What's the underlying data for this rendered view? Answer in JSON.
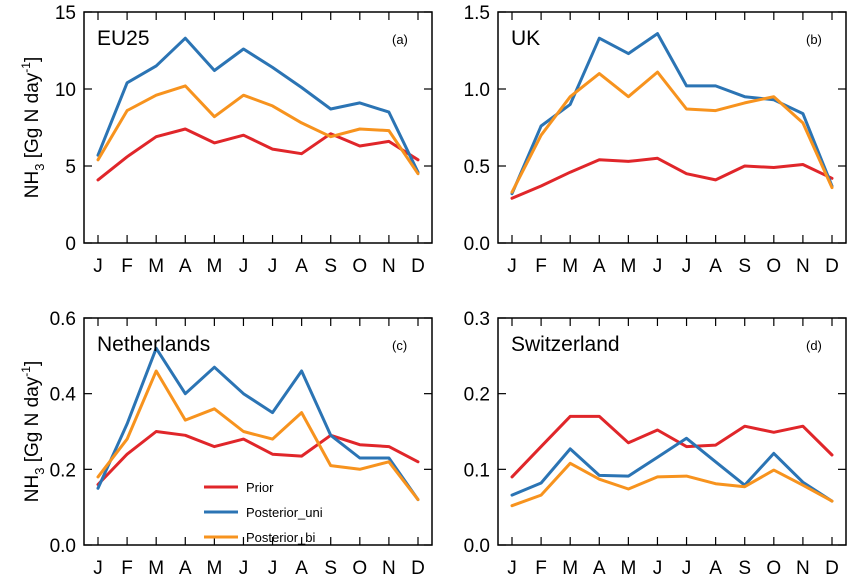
{
  "chart_data": [
    {
      "type": "line",
      "title": "EU25",
      "panel_tag": "(a)",
      "ylabel": "NH3 [Gg N day-1]",
      "categories": [
        "J",
        "F",
        "M",
        "A",
        "M",
        "J",
        "J",
        "A",
        "S",
        "O",
        "N",
        "D"
      ],
      "ylim": [
        0,
        15
      ],
      "yticks": [
        0,
        5,
        10,
        15
      ],
      "ytick_labels": [
        "0",
        "5",
        "10",
        "15"
      ],
      "series": [
        {
          "name": "Prior",
          "color": "#e0262a",
          "values": [
            4.1,
            5.6,
            6.9,
            7.4,
            6.5,
            7.0,
            6.1,
            5.8,
            7.1,
            6.3,
            6.6,
            5.4
          ]
        },
        {
          "name": "Posterior_uni",
          "color": "#2b74b4",
          "values": [
            5.7,
            10.4,
            11.5,
            13.3,
            11.2,
            12.6,
            11.4,
            10.1,
            8.7,
            9.1,
            8.5,
            4.6
          ]
        },
        {
          "name": "Posterior_bi",
          "color": "#f7931e",
          "values": [
            5.4,
            8.6,
            9.6,
            10.2,
            8.2,
            9.6,
            8.9,
            7.8,
            6.9,
            7.4,
            7.3,
            4.5
          ]
        }
      ]
    },
    {
      "type": "line",
      "title": "UK",
      "panel_tag": "(b)",
      "ylabel": "",
      "categories": [
        "J",
        "F",
        "M",
        "A",
        "M",
        "J",
        "J",
        "A",
        "S",
        "O",
        "N",
        "D"
      ],
      "ylim": [
        0,
        1.5
      ],
      "yticks": [
        0,
        0.5,
        1.0,
        1.5
      ],
      "ytick_labels": [
        "0.0",
        "0.5",
        "1.0",
        "1.5"
      ],
      "series": [
        {
          "name": "Prior",
          "color": "#e0262a",
          "values": [
            0.29,
            0.37,
            0.46,
            0.54,
            0.53,
            0.55,
            0.45,
            0.41,
            0.5,
            0.49,
            0.51,
            0.42
          ]
        },
        {
          "name": "Posterior_uni",
          "color": "#2b74b4",
          "values": [
            0.32,
            0.76,
            0.9,
            1.33,
            1.23,
            1.36,
            1.02,
            1.02,
            0.95,
            0.93,
            0.84,
            0.37
          ]
        },
        {
          "name": "Posterior_bi",
          "color": "#f7931e",
          "values": [
            0.33,
            0.7,
            0.95,
            1.1,
            0.95,
            1.11,
            0.87,
            0.86,
            0.91,
            0.95,
            0.78,
            0.36
          ]
        }
      ]
    },
    {
      "type": "line",
      "title": "Netherlands",
      "panel_tag": "(c)",
      "ylabel": "NH3 [Gg N day-1]",
      "categories": [
        "J",
        "F",
        "M",
        "A",
        "M",
        "J",
        "J",
        "A",
        "S",
        "O",
        "N",
        "D"
      ],
      "ylim": [
        0,
        0.6
      ],
      "yticks": [
        0,
        0.2,
        0.4,
        0.6
      ],
      "ytick_labels": [
        "0.0",
        "0.2",
        "0.4",
        "0.6"
      ],
      "series": [
        {
          "name": "Prior",
          "color": "#e0262a",
          "values": [
            0.16,
            0.24,
            0.3,
            0.29,
            0.26,
            0.28,
            0.24,
            0.235,
            0.29,
            0.265,
            0.26,
            0.22
          ]
        },
        {
          "name": "Posterior_uni",
          "color": "#2b74b4",
          "values": [
            0.15,
            0.32,
            0.52,
            0.4,
            0.47,
            0.4,
            0.35,
            0.46,
            0.29,
            0.23,
            0.23,
            0.12
          ]
        },
        {
          "name": "Posterior_bi",
          "color": "#f7931e",
          "values": [
            0.18,
            0.28,
            0.46,
            0.33,
            0.36,
            0.3,
            0.28,
            0.35,
            0.21,
            0.2,
            0.22,
            0.12
          ]
        }
      ]
    },
    {
      "type": "line",
      "title": "Switzerland",
      "panel_tag": "(d)",
      "ylabel": "",
      "categories": [
        "J",
        "F",
        "M",
        "A",
        "M",
        "J",
        "J",
        "A",
        "S",
        "O",
        "N",
        "D"
      ],
      "ylim": [
        0,
        0.3
      ],
      "yticks": [
        0,
        0.1,
        0.2,
        0.3
      ],
      "ytick_labels": [
        "0.0",
        "0.1",
        "0.2",
        "0.3"
      ],
      "series": [
        {
          "name": "Prior",
          "color": "#e0262a",
          "values": [
            0.09,
            0.13,
            0.17,
            0.17,
            0.135,
            0.152,
            0.13,
            0.132,
            0.157,
            0.149,
            0.157,
            0.119
          ]
        },
        {
          "name": "Posterior_uni",
          "color": "#2b74b4",
          "values": [
            0.066,
            0.082,
            0.127,
            0.092,
            0.091,
            0.116,
            0.141,
            0.11,
            0.079,
            0.121,
            0.083,
            0.058
          ]
        },
        {
          "name": "Posterior_bi",
          "color": "#f7931e",
          "values": [
            0.052,
            0.066,
            0.108,
            0.087,
            0.074,
            0.09,
            0.091,
            0.081,
            0.077,
            0.099,
            0.079,
            0.058
          ]
        }
      ]
    }
  ],
  "legend": {
    "items": [
      {
        "label": "Prior",
        "color": "#e0262a"
      },
      {
        "label": "Posterior_uni",
        "color": "#2b74b4"
      },
      {
        "label": "Posterior_bi",
        "color": "#f7931e"
      }
    ]
  }
}
